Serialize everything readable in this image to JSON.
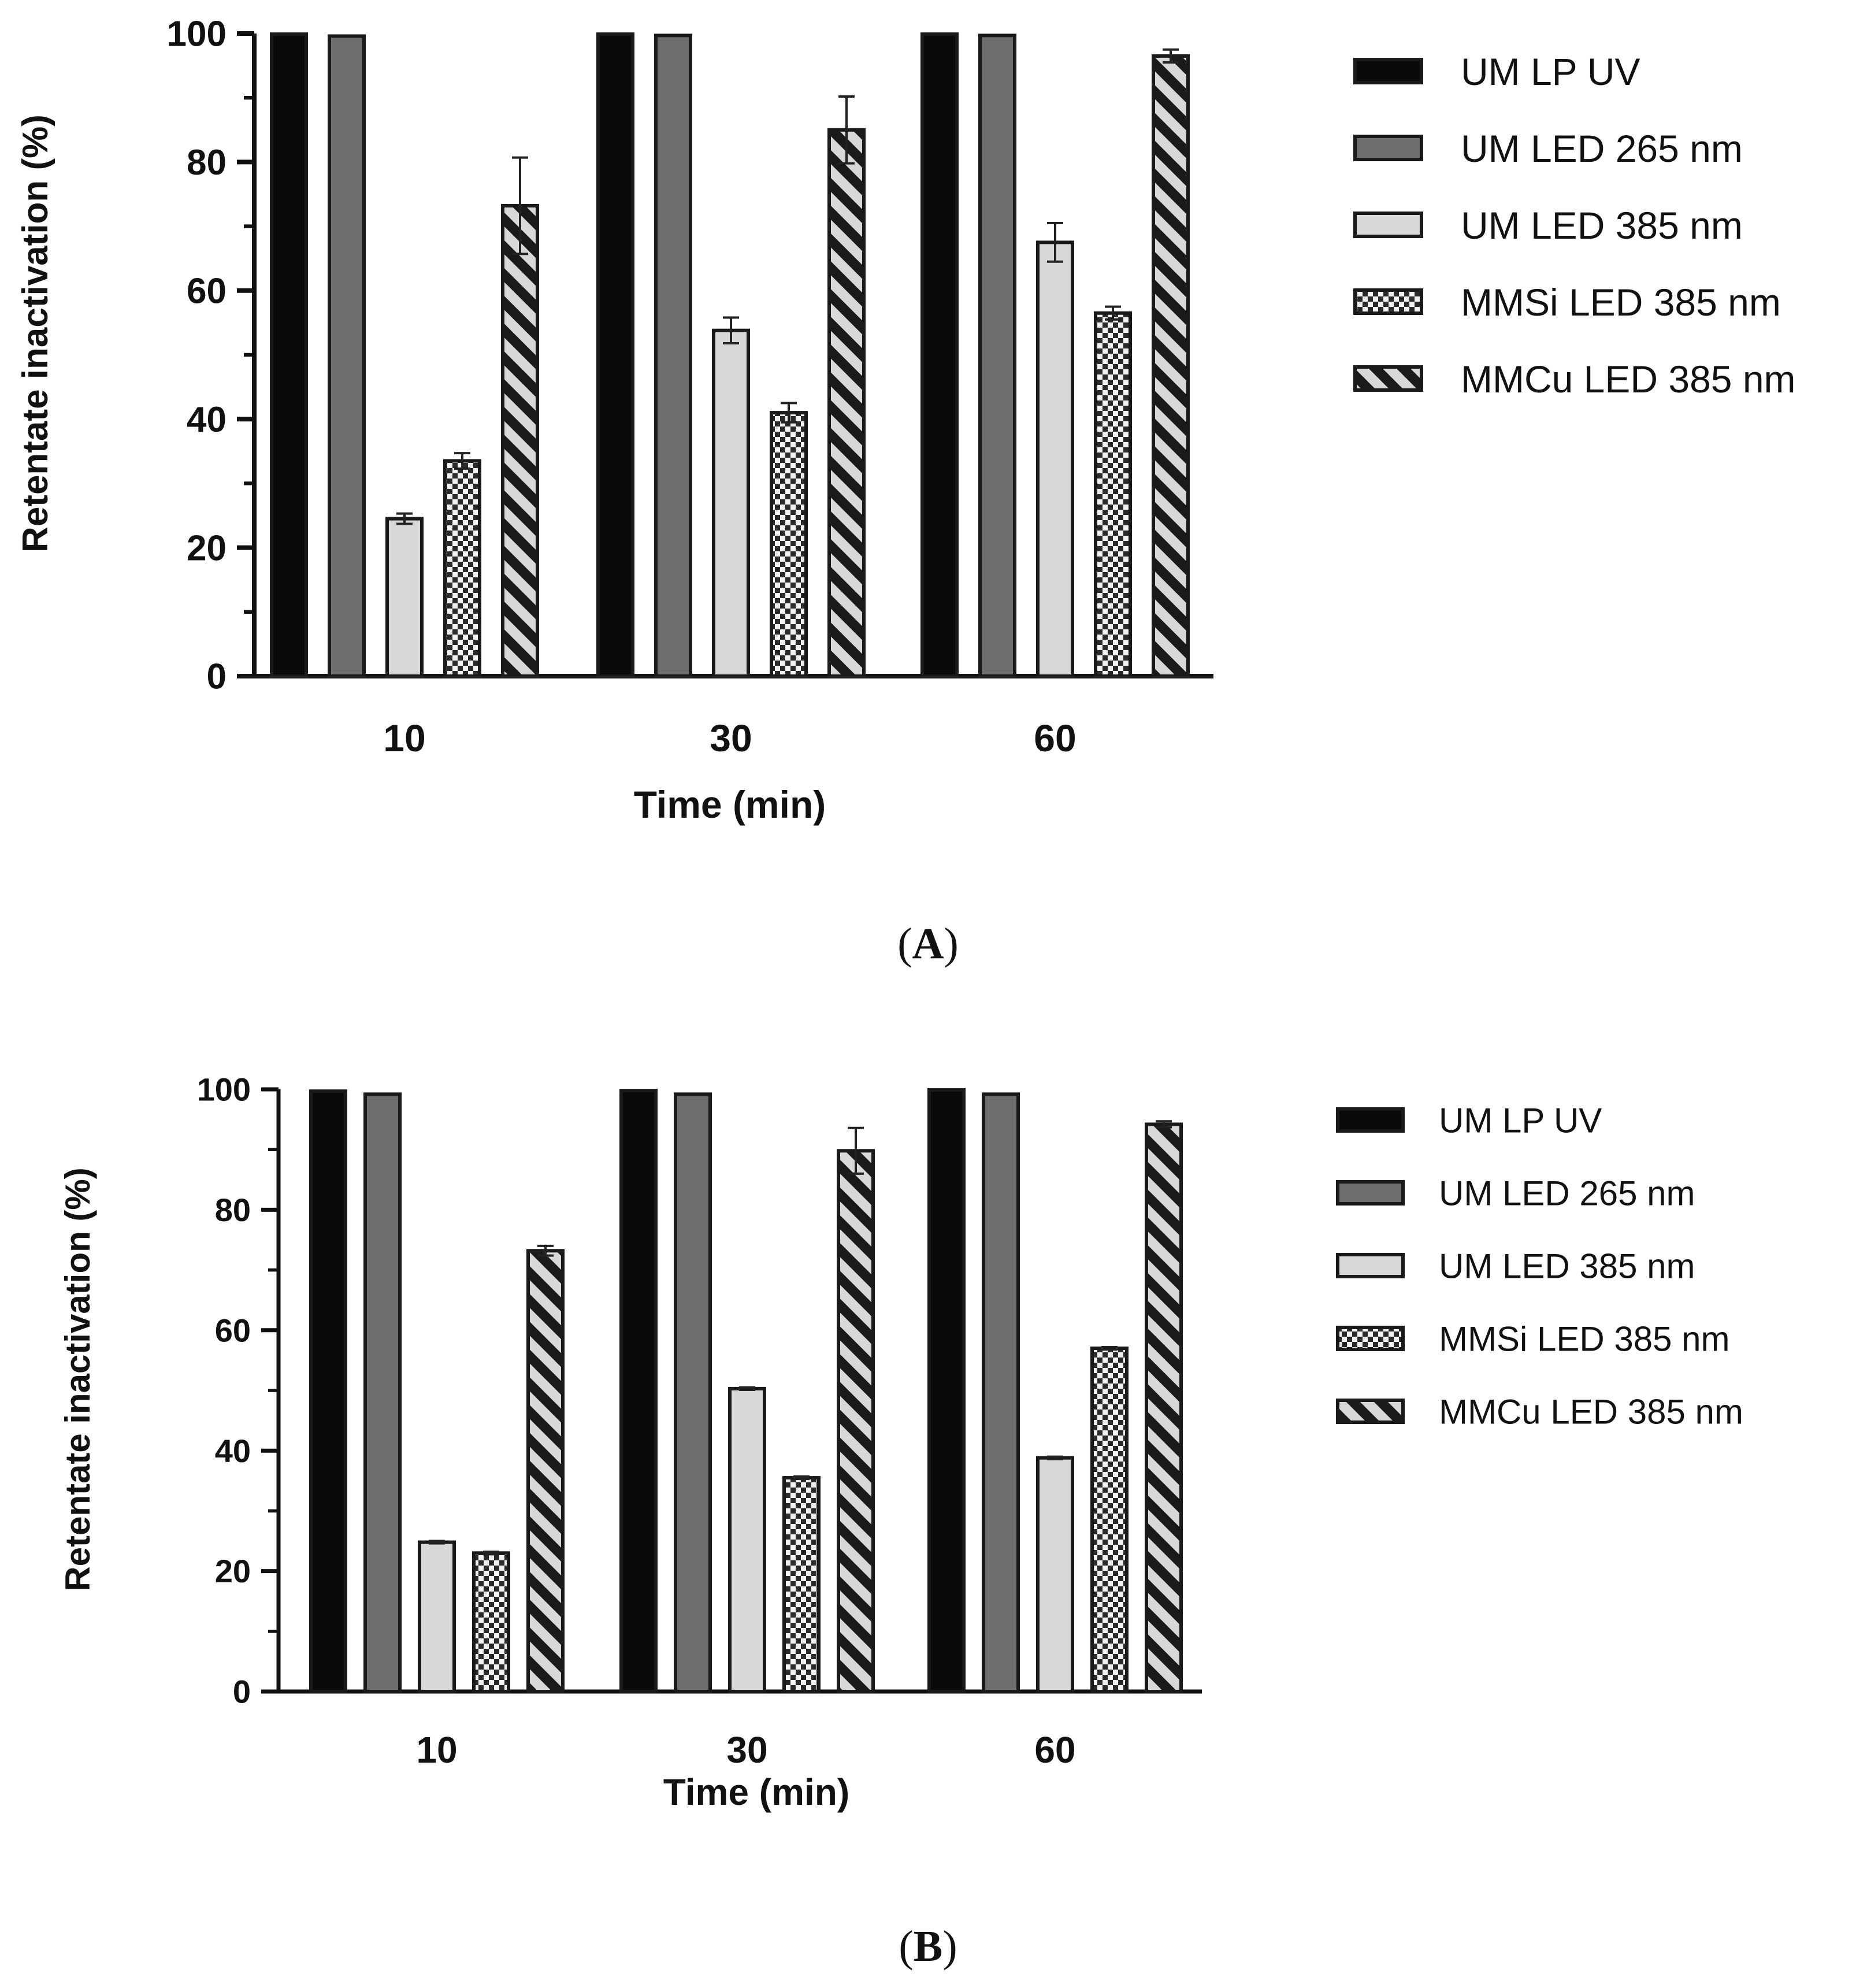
{
  "chart_data": [
    {
      "type": "bar",
      "panel_label_prefix": "(",
      "panel_letter": "A",
      "panel_label_suffix": ")",
      "title": "",
      "xlabel": "Time (min)",
      "ylabel": "Retentate inactivation (%)",
      "ylim": [
        0,
        100
      ],
      "yticks": [
        "0",
        "20",
        "40",
        "60",
        "80",
        "100"
      ],
      "categories": [
        "10",
        "30",
        "60"
      ],
      "legend_position": "right",
      "series": [
        {
          "name": "UM LP UV",
          "pattern": "black",
          "values": [
            99.9,
            99.9,
            99.9
          ],
          "errors": [
            0,
            0,
            0
          ]
        },
        {
          "name": "UM LED 265 nm",
          "pattern": "darkgray",
          "values": [
            99.6,
            99.7,
            99.7
          ],
          "errors": [
            0,
            0,
            0
          ]
        },
        {
          "name": "UM LED 385 nm",
          "pattern": "lightgray",
          "values": [
            24.5,
            53.8,
            67.5
          ],
          "errors": [
            0.8,
            2.0,
            3.0
          ]
        },
        {
          "name": "MMSi LED 385 nm",
          "pattern": "checker",
          "values": [
            33.5,
            41.0,
            56.5
          ],
          "errors": [
            1.2,
            1.5,
            1.0
          ]
        },
        {
          "name": "MMCu LED 385 nm",
          "pattern": "stripe",
          "values": [
            73.2,
            85.0,
            96.5
          ],
          "errors": [
            7.5,
            5.2,
            1.0
          ]
        }
      ]
    },
    {
      "type": "bar",
      "panel_label_prefix": "(",
      "panel_letter": "B",
      "panel_label_suffix": ")",
      "title": "",
      "xlabel": "Time (min)",
      "ylabel": "Retentate inactivation (%)",
      "ylim": [
        0,
        100
      ],
      "yticks": [
        "0",
        "20",
        "40",
        "60",
        "80",
        "100"
      ],
      "categories": [
        "10",
        "30",
        "60"
      ],
      "legend_position": "right",
      "series": [
        {
          "name": "UM LP UV",
          "pattern": "black",
          "values": [
            99.7,
            99.8,
            99.9
          ],
          "errors": [
            0,
            0,
            0
          ]
        },
        {
          "name": "UM LED 265 nm",
          "pattern": "darkgray",
          "values": [
            99.2,
            99.2,
            99.2
          ],
          "errors": [
            0,
            0,
            0
          ]
        },
        {
          "name": "UM LED 385 nm",
          "pattern": "lightgray",
          "values": [
            24.8,
            50.3,
            38.8
          ],
          "errors": [
            0.2,
            0.2,
            0.2
          ]
        },
        {
          "name": "MMSi LED 385 nm",
          "pattern": "checker",
          "values": [
            23.0,
            35.5,
            57.0
          ],
          "errors": [
            0.2,
            0.2,
            0.2
          ]
        },
        {
          "name": "MMCu LED 385 nm",
          "pattern": "stripe",
          "values": [
            73.2,
            89.8,
            94.2
          ],
          "errors": [
            0.8,
            3.8,
            0.5
          ]
        }
      ]
    }
  ],
  "colors": {
    "black": "#0a0a0a",
    "darkgray": "#6e6e6e",
    "lightgray": "#d8d8d8",
    "outline": "#1a1a1a"
  }
}
